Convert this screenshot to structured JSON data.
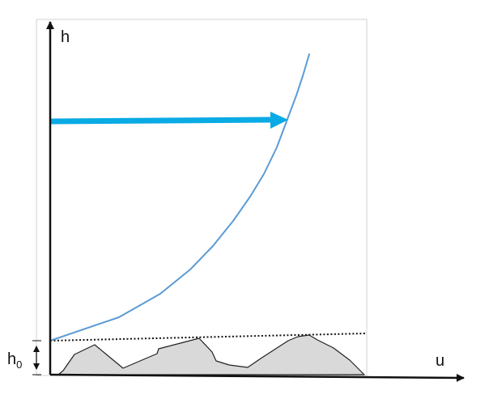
{
  "labels": {
    "y_axis": "h",
    "x_axis": "u",
    "h0_main": "h",
    "h0_sub": "0"
  },
  "colors": {
    "frame": "#d0d0d0",
    "axis": "#111111",
    "curve": "#5b9bd5",
    "arrow": "#0aaae4",
    "terrain_fill": "#d9d9d9",
    "terrain_stroke": "#222222",
    "dotted_line": "#111111"
  }
}
